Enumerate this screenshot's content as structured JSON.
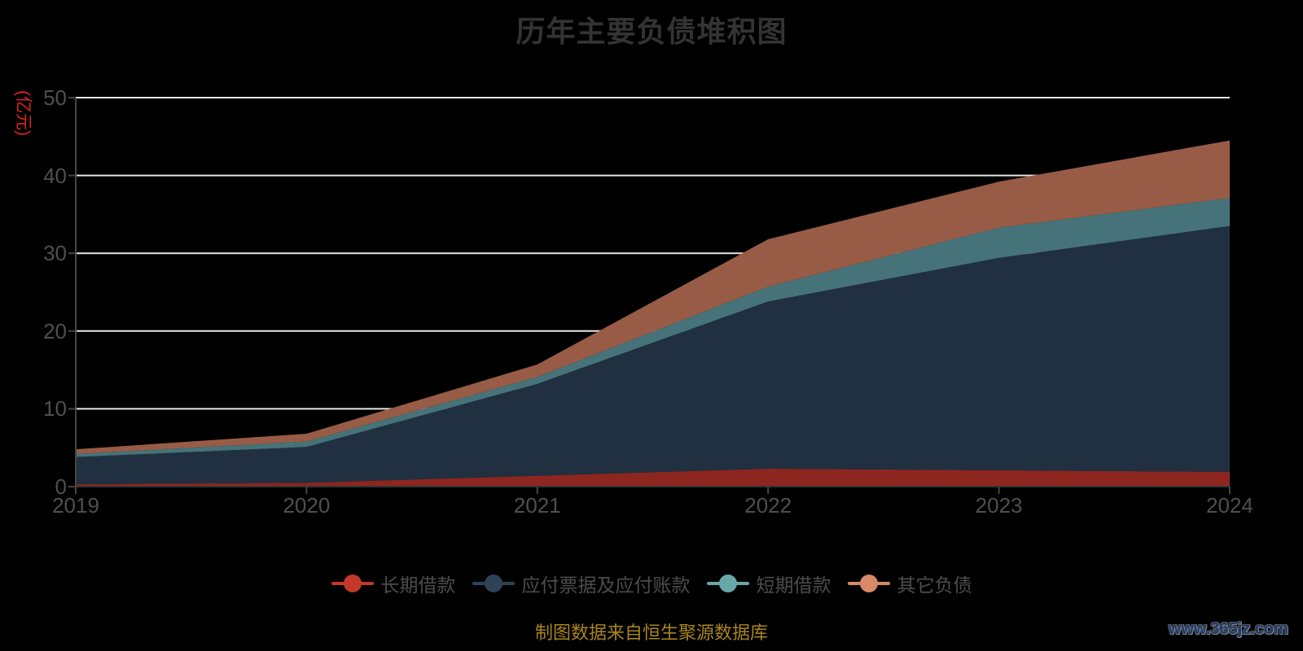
{
  "title": {
    "text": "历年主要负债堆积图"
  },
  "y_axis": {
    "unit_label": "(亿元)",
    "unit_color": "#e02420",
    "tick_labels": [
      "0",
      "10",
      "20",
      "30",
      "40",
      "50"
    ],
    "min": 0,
    "max": 50
  },
  "x_axis": {
    "tick_labels": [
      "2019",
      "2020",
      "2021",
      "2022",
      "2023",
      "2024"
    ]
  },
  "legend": {
    "items": [
      {
        "label": "长期借款",
        "color": "#c4382a"
      },
      {
        "label": "应付票据及应付账款",
        "color": "#2e4357"
      },
      {
        "label": "短期借款",
        "color": "#68a7a9"
      },
      {
        "label": "其它负债",
        "color": "#d78a66"
      }
    ]
  },
  "footer": {
    "source_text": "制图数据来自恒生聚源数据库",
    "watermark": "www.365jz.com"
  },
  "style": {
    "background": "#000000",
    "gridline_color": "#e6e6e6",
    "axis_color": "#454545",
    "tick_text_color": "#4f4f4f"
  },
  "chart_data": {
    "type": "area",
    "stacked": true,
    "title": "历年主要负债堆积图",
    "ylabel": "(亿元)",
    "ylim": [
      0,
      50
    ],
    "grid": true,
    "legend_position": "bottom",
    "categories": [
      2019,
      2020,
      2021,
      2022,
      2023,
      2024
    ],
    "series": [
      {
        "name": "长期借款",
        "values": [
          0.3,
          0.5,
          1.4,
          2.3,
          2.1,
          1.9
        ],
        "area_color": "#8e2620",
        "legend_color": "#c4382a"
      },
      {
        "name": "应付票据及应付账款",
        "values": [
          3.5,
          4.6,
          11.8,
          21.5,
          27.3,
          31.6
        ],
        "area_color": "#203040",
        "legend_color": "#2e4357"
      },
      {
        "name": "短期借款",
        "values": [
          0.4,
          0.7,
          0.9,
          1.9,
          3.9,
          3.6
        ],
        "area_color": "#467379",
        "legend_color": "#68a7a9"
      },
      {
        "name": "其它负债",
        "values": [
          0.6,
          1.0,
          1.6,
          6.1,
          5.9,
          7.4
        ],
        "area_color": "#985c46",
        "legend_color": "#d78a66"
      }
    ],
    "stacked_totals": [
      4.8,
      6.8,
      15.7,
      31.8,
      39.2,
      44.4
    ]
  }
}
